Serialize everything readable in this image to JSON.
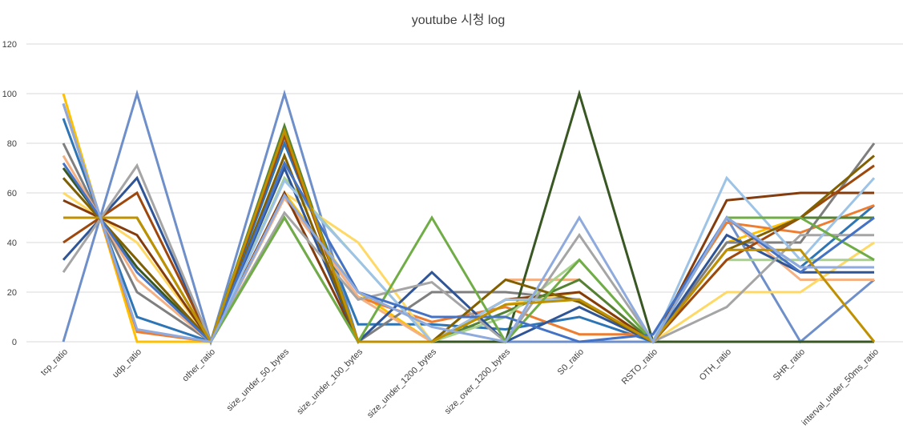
{
  "chart_data": {
    "type": "line",
    "title": "youtube 시청 log",
    "xlabel": "",
    "ylabel": "",
    "ylim": [
      0,
      120
    ],
    "yticks": [
      0,
      20,
      40,
      60,
      80,
      100,
      120
    ],
    "grid": true,
    "legend": "none",
    "categories": [
      "tcp_ratio",
      "udp_ratio",
      "other_ratio",
      "size_under_50_bytes",
      "size_under_100_bytes",
      "size_under_1200_bytes",
      "size_over_1200_bytes",
      "S0_ratio",
      "RSTO_ratio",
      "OTH_ratio",
      "SHR_ratio",
      "interval_under_50ms_ratio"
    ],
    "series": [
      {
        "color": "#6E8FC9",
        "values": [
          0,
          100,
          0,
          100,
          0,
          0,
          0,
          0,
          0,
          50,
          0,
          25
        ]
      },
      {
        "color": "#2E75B6",
        "values": [
          90,
          10,
          0,
          80,
          7,
          7,
          5,
          10,
          0,
          50,
          30,
          55
        ]
      },
      {
        "color": "#FFC000",
        "values": [
          100,
          0,
          0,
          60,
          20,
          0,
          15,
          20,
          0,
          40,
          50,
          50
        ]
      },
      {
        "color": "#ED7D31",
        "values": [
          96,
          4,
          0,
          58,
          18,
          8,
          14,
          3,
          3,
          48,
          44,
          55
        ]
      },
      {
        "color": "#7F7F7F",
        "values": [
          80,
          20,
          0,
          50,
          0,
          20,
          20,
          17,
          0,
          40,
          40,
          80
        ]
      },
      {
        "color": "#F4B183",
        "values": [
          75,
          25,
          0,
          58,
          18,
          0,
          25,
          25,
          0,
          50,
          25,
          25
        ]
      },
      {
        "color": "#385723",
        "values": [
          70,
          30,
          0,
          85,
          0,
          0,
          0,
          100,
          0,
          0,
          0,
          0
        ]
      },
      {
        "color": "#FFD966",
        "values": [
          60,
          40,
          0,
          60,
          40,
          0,
          15,
          20,
          0,
          20,
          20,
          40
        ]
      },
      {
        "color": "#843C0C",
        "values": [
          57,
          43,
          0,
          60,
          0,
          0,
          17,
          20,
          0,
          57,
          60,
          60
        ]
      },
      {
        "color": "#548235",
        "values": [
          50,
          50,
          0,
          87,
          0,
          0,
          12,
          25,
          0,
          50,
          50,
          50
        ]
      },
      {
        "color": "#A9D18E",
        "values": [
          50,
          50,
          0,
          66,
          33,
          0,
          10,
          33,
          0,
          33,
          33,
          33
        ]
      },
      {
        "color": "#2F5597",
        "values": [
          33,
          66,
          0,
          70,
          0,
          28,
          0,
          14,
          0,
          43,
          28,
          28
        ]
      },
      {
        "color": "#9E480E",
        "values": [
          40,
          60,
          0,
          83,
          0,
          0,
          17,
          17,
          0,
          33,
          50,
          71
        ]
      },
      {
        "color": "#A5A5A5",
        "values": [
          28,
          71,
          0,
          52,
          17,
          24,
          0,
          43,
          0,
          14,
          43,
          43
        ]
      },
      {
        "color": "#9DC3E6",
        "values": [
          66,
          33,
          0,
          65,
          33,
          0,
          17,
          17,
          0,
          66,
          33,
          66
        ]
      },
      {
        "color": "#806000",
        "values": [
          66,
          33,
          0,
          75,
          0,
          0,
          25,
          16,
          0,
          37,
          50,
          75
        ]
      },
      {
        "color": "#70AD47",
        "values": [
          50,
          50,
          0,
          50,
          0,
          50,
          0,
          33,
          0,
          50,
          50,
          33
        ]
      },
      {
        "color": "#4472C4",
        "values": [
          72,
          28,
          0,
          72,
          20,
          10,
          10,
          0,
          3,
          50,
          28,
          50
        ]
      },
      {
        "color": "#BF9000",
        "values": [
          50,
          50,
          0,
          85,
          0,
          0,
          15,
          17,
          0,
          37,
          37,
          0
        ]
      },
      {
        "color": "#8FAADC",
        "values": [
          96,
          5,
          0,
          59,
          20,
          6,
          0,
          50,
          0,
          50,
          30,
          30
        ]
      }
    ]
  }
}
